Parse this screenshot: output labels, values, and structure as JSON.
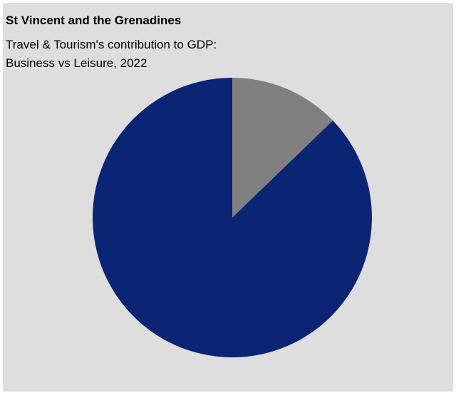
{
  "header": {
    "title": "St Vincent and the Grenadines",
    "subtitle_line1": "Travel & Tourism's contribution to GDP:",
    "subtitle_line2": "Business vs Leisure, 2022"
  },
  "chart_data": {
    "type": "pie",
    "title": "St Vincent and the Grenadines",
    "subtitle": "Travel & Tourism's contribution to GDP: Business vs Leisure, 2022",
    "start_angle_deg": 0,
    "direction": "clockwise",
    "slices": [
      {
        "value": 12.8,
        "color": "#808080"
      },
      {
        "value": 87.2,
        "color": "#0c2474"
      }
    ]
  }
}
